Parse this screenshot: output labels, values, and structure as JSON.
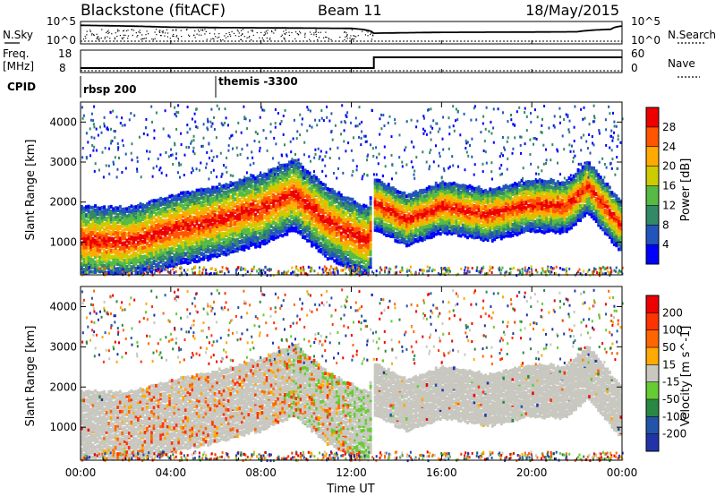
{
  "header": {
    "title": "Blackstone (fitACF)",
    "beam": "Beam 11",
    "date": "18/May/2015"
  },
  "chart_data": [
    {
      "type": "line",
      "name": "noise",
      "left_label": "N.Sky",
      "right_label": "N.Search",
      "left_ticks": [
        "10^5",
        "10^0"
      ],
      "right_ticks": [
        "10^5",
        "10^0"
      ],
      "x_hours": [
        0,
        2,
        4,
        6,
        8,
        10,
        12,
        13,
        16,
        20,
        22,
        23.5,
        24
      ],
      "sky": [
        30000,
        20000,
        10000,
        8000,
        7000,
        6000,
        5000,
        300,
        500,
        600,
        700,
        3000,
        20000
      ],
      "search": [
        1,
        1,
        1,
        1,
        1,
        1,
        1,
        1,
        1,
        1,
        1,
        1,
        1
      ]
    },
    {
      "type": "line",
      "name": "frequency",
      "left_label": "Freq.",
      "left_unit": "[MHz]",
      "left_ticks": [
        18,
        8
      ],
      "right_label": "Nave",
      "right_ticks": [
        60,
        0
      ],
      "freq_points": [
        [
          0,
          10.5
        ],
        [
          13,
          10.5
        ],
        [
          13,
          18
        ],
        [
          24,
          18
        ]
      ],
      "nave_points": [
        [
          0,
          0
        ],
        [
          24,
          0
        ]
      ]
    },
    {
      "type": "table",
      "name": "cpid",
      "label": "CPID",
      "entries": [
        {
          "start_hour": 0,
          "text": "rbsp 200"
        },
        {
          "start_hour": 6,
          "text": "themis -3300"
        }
      ]
    },
    {
      "type": "heatmap",
      "name": "power",
      "ylabel": "Slant Range [km]",
      "yticks": [
        1000,
        2000,
        3000,
        4000
      ],
      "ylim": [
        180,
        4500
      ],
      "colorbar_label": "Power [dB]",
      "colorbar_ticks": [
        4,
        8,
        12,
        16,
        20,
        24,
        28
      ],
      "colorbar_colors": [
        "#0000ff",
        "#2255bb",
        "#338866",
        "#55bb44",
        "#cccc00",
        "#ffaa00",
        "#ff5500",
        "#ee0000"
      ],
      "band_center_hours": [
        0,
        2,
        4,
        6,
        8,
        9.5,
        11,
        12.8,
        13,
        14.5,
        16,
        18,
        20,
        21.5,
        22.5,
        24
      ],
      "band_center_km": [
        1050,
        1000,
        1300,
        1550,
        1850,
        2200,
        1500,
        1000,
        2000,
        1550,
        1900,
        1700,
        1950,
        1900,
        2400,
        1400
      ]
    },
    {
      "type": "heatmap",
      "name": "velocity",
      "ylabel": "Slant Range [km]",
      "yticks": [
        1000,
        2000,
        3000,
        4000
      ],
      "ylim": [
        180,
        4500
      ],
      "colorbar_label": "Velocity [m s^-1]",
      "colorbar_ticks": [
        200,
        100,
        50,
        15,
        -15,
        -50,
        -100,
        -200
      ],
      "colorbar_colors": [
        "#2233aa",
        "#2255aa",
        "#2a8844",
        "#66cc33",
        "#c8c8c0",
        "#ffaa00",
        "#ff6600",
        "#ff3300",
        "#ee0000"
      ],
      "xlabel": "Time UT",
      "xticks": [
        "00:00",
        "04:00",
        "08:00",
        "12:00",
        "16:00",
        "20:00",
        "00:00"
      ],
      "xlim_hours": [
        0,
        24
      ]
    }
  ]
}
